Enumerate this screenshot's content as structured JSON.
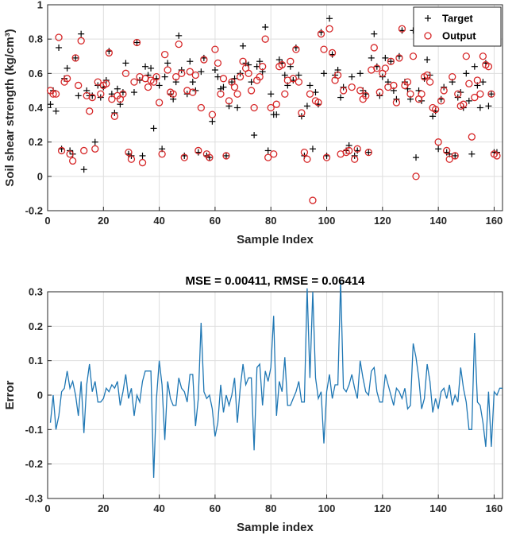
{
  "figure": {
    "charts": [
      "scatter",
      "line"
    ]
  },
  "chart_data": [
    {
      "type": "scatter",
      "title": "",
      "xlabel": "Sample Index",
      "ylabel": "Soil shear strength (kg/cm³)",
      "xlim": [
        0,
        163
      ],
      "ylim": [
        -0.2,
        1
      ],
      "xticks": [
        "0",
        "20",
        "40",
        "60",
        "80",
        "100",
        "120",
        "140",
        "160"
      ],
      "yticks": [
        "-0.2",
        "0",
        "0.2",
        "0.4",
        "0.6",
        "0.8",
        "1"
      ],
      "grid": true,
      "legend_position": "top-right",
      "series": [
        {
          "name": "Target",
          "marker": "plus",
          "color": "#000000",
          "values": [
            0.42,
            0.5,
            0.38,
            0.75,
            0.16,
            0.57,
            0.63,
            0.15,
            0.13,
            0.69,
            0.47,
            0.83,
            0.04,
            0.5,
            0.47,
            0.47,
            0.2,
            0.53,
            0.46,
            0.52,
            0.56,
            0.73,
            0.48,
            0.37,
            0.51,
            0.42,
            0.49,
            0.66,
            0.13,
            0.12,
            0.49,
            0.78,
            0.56,
            0.12,
            0.64,
            0.59,
            0.63,
            0.28,
            0.57,
            0.53,
            0.16,
            0.58,
            0.66,
            0.48,
            0.45,
            0.55,
            0.82,
            0.62,
            0.12,
            0.48,
            0.67,
            0.55,
            0.5,
            0.14,
            0.61,
            0.69,
            0.12,
            0.11,
            0.32,
            0.62,
            0.58,
            0.51,
            0.52,
            0.12,
            0.41,
            0.55,
            0.57,
            0.4,
            0.6,
            0.76,
            0.66,
            0.65,
            0.55,
            0.24,
            0.64,
            0.67,
            0.61,
            0.87,
            0.15,
            0.48,
            0.36,
            0.36,
            0.68,
            0.66,
            0.59,
            0.53,
            0.64,
            0.56,
            0.75,
            0.59,
            0.35,
            0.12,
            0.41,
            0.53,
            0.16,
            0.49,
            0.42,
            0.84,
            0.6,
            0.12,
            0.92,
            0.71,
            0.59,
            0.62,
            0.46,
            0.52,
            0.15,
            0.18,
            0.58,
            0.12,
            0.15,
            0.6,
            0.5,
            0.48,
            0.14,
            0.69,
            0.83,
            0.64,
            0.47,
            0.58,
            0.69,
            0.55,
            0.67,
            0.5,
            0.45,
            0.7,
            0.85,
            0.55,
            0.51,
            0.45,
            0.85,
            0.11,
            0.5,
            0.44,
            0.57,
            0.68,
            0.59,
            0.35,
            0.38,
            0.16,
            0.45,
            0.52,
            0.14,
            0.13,
            0.55,
            0.12,
            0.46,
            0.49,
            0.4,
            0.6,
            0.44,
            0.13,
            0.64,
            0.53,
            0.4,
            0.55,
            0.66,
            0.41,
            0.48,
            0.14,
            0.14
          ]
        },
        {
          "name": "Output",
          "marker": "circle",
          "color": "#d62728",
          "values": [
            0.5,
            0.48,
            0.48,
            0.81,
            0.15,
            0.55,
            0.57,
            0.13,
            0.09,
            0.69,
            0.53,
            0.79,
            0.15,
            0.47,
            0.38,
            0.46,
            0.16,
            0.55,
            0.48,
            0.53,
            0.54,
            0.72,
            0.45,
            0.35,
            0.47,
            0.45,
            0.48,
            0.6,
            0.14,
            0.1,
            0.55,
            0.78,
            0.58,
            0.08,
            0.57,
            0.52,
            0.56,
            0.55,
            0.58,
            0.43,
            0.13,
            0.71,
            0.62,
            0.49,
            0.48,
            0.58,
            0.77,
            0.6,
            0.11,
            0.5,
            0.61,
            0.49,
            0.59,
            0.15,
            0.4,
            0.68,
            0.13,
            0.11,
            0.36,
            0.74,
            0.66,
            0.48,
            0.57,
            0.12,
            0.44,
            0.55,
            0.52,
            0.48,
            0.58,
            0.67,
            0.63,
            0.6,
            0.5,
            0.4,
            0.56,
            0.58,
            0.64,
            0.8,
            0.11,
            0.4,
            0.13,
            0.42,
            0.64,
            0.65,
            0.48,
            0.56,
            0.67,
            0.57,
            0.74,
            0.55,
            0.37,
            0.14,
            0.1,
            0.48,
            -0.14,
            0.44,
            0.43,
            0.83,
            0.74,
            0.11,
            0.86,
            0.72,
            0.56,
            0.59,
            0.13,
            0.5,
            0.14,
            0.15,
            0.52,
            0.1,
            0.16,
            0.5,
            0.45,
            0.47,
            0.14,
            0.62,
            0.75,
            0.63,
            0.49,
            0.6,
            0.63,
            0.52,
            0.67,
            0.53,
            0.43,
            0.69,
            0.86,
            0.53,
            0.55,
            0.48,
            0.7,
            0.0,
            0.45,
            0.48,
            0.58,
            0.59,
            0.55,
            0.4,
            0.39,
            0.2,
            0.44,
            0.5,
            0.15,
            0.1,
            0.58,
            0.12,
            0.48,
            0.41,
            0.42,
            0.7,
            0.54,
            0.23,
            0.46,
            0.56,
            0.48,
            0.7,
            0.65,
            0.64,
            0.48,
            0.13,
            0.12
          ]
        }
      ]
    },
    {
      "type": "line",
      "title": "MSE = 0.00411, RMSE = 0.06414",
      "xlabel": "Sample index",
      "ylabel": "Error",
      "xlim": [
        0,
        163
      ],
      "ylim": [
        -0.3,
        0.3
      ],
      "xticks": [
        "0",
        "20",
        "40",
        "60",
        "80",
        "100",
        "120",
        "140",
        "160"
      ],
      "yticks": [
        "-0.3",
        "-0.2",
        "-0.1",
        "0",
        "0.1",
        "0.2",
        "0.3"
      ],
      "grid": true,
      "series": [
        {
          "color": "#1f77b4",
          "values": [
            -0.08,
            0.0,
            -0.1,
            -0.06,
            0.01,
            0.02,
            0.07,
            0.02,
            0.04,
            0.0,
            -0.06,
            0.04,
            -0.11,
            0.03,
            0.09,
            0.01,
            0.04,
            -0.02,
            -0.02,
            -0.01,
            0.02,
            0.01,
            0.03,
            0.02,
            0.04,
            -0.03,
            0.01,
            0.06,
            -0.01,
            0.02,
            -0.06,
            0.0,
            -0.02,
            0.04,
            0.07,
            0.07,
            0.07,
            -0.24,
            -0.01,
            0.1,
            0.03,
            -0.13,
            0.04,
            -0.01,
            -0.03,
            -0.03,
            0.05,
            0.02,
            0.01,
            -0.02,
            0.06,
            0.06,
            -0.09,
            -0.01,
            0.21,
            0.01,
            -0.01,
            0.0,
            -0.04,
            -0.12,
            -0.08,
            0.03,
            -0.05,
            0.0,
            -0.03,
            0.0,
            0.05,
            -0.08,
            0.02,
            0.09,
            0.03,
            0.05,
            0.05,
            -0.16,
            0.08,
            0.09,
            -0.03,
            0.07,
            0.04,
            0.08,
            0.23,
            -0.06,
            0.04,
            0.01,
            0.11,
            -0.03,
            -0.03,
            -0.01,
            0.01,
            0.04,
            -0.02,
            -0.02,
            0.31,
            0.05,
            0.3,
            0.05,
            -0.01,
            0.01,
            -0.14,
            0.01,
            0.06,
            -0.01,
            0.03,
            0.03,
            0.33,
            0.02,
            0.01,
            0.03,
            0.06,
            0.02,
            -0.01,
            0.1,
            0.05,
            0.01,
            0.0,
            0.07,
            0.08,
            0.01,
            -0.02,
            -0.02,
            0.06,
            0.03,
            0.0,
            -0.03,
            0.02,
            0.01,
            -0.01,
            0.02,
            -0.04,
            -0.03,
            0.15,
            0.11,
            0.05,
            -0.04,
            -0.01,
            0.09,
            0.04,
            -0.05,
            -0.01,
            -0.04,
            0.01,
            0.02,
            -0.01,
            0.03,
            -0.03,
            0.0,
            -0.02,
            0.08,
            0.02,
            -0.02,
            -0.1,
            -0.1,
            0.18,
            -0.02,
            -0.03,
            -0.08,
            -0.15,
            0.01,
            -0.15,
            0.01,
            0.0,
            0.02,
            0.02
          ]
        }
      ]
    }
  ]
}
